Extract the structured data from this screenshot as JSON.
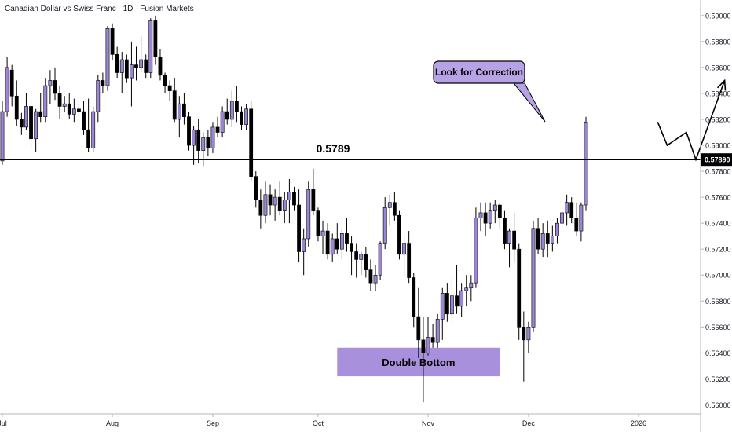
{
  "header": {
    "title": "Canadian Dollar vs Swiss Franc · 1D · Fusion Markets"
  },
  "chart_data": {
    "type": "candlestick",
    "title": "Canadian Dollar vs Swiss Franc · 1D · Fusion Markets",
    "ylim": [
      0.5593,
      0.5912
    ],
    "y_ticks": [
      0.59,
      0.588,
      0.586,
      0.584,
      0.582,
      0.58,
      0.578,
      0.576,
      0.574,
      0.572,
      0.57,
      0.568,
      0.566,
      0.564,
      0.562,
      0.56
    ],
    "y_tick_labels": [
      "0.59000",
      "0.58800",
      "0.58600",
      "0.58400",
      "0.58200",
      "0.58000",
      "0.57800",
      "0.57600",
      "0.57400",
      "0.57200",
      "0.57000",
      "0.56800",
      "0.56600",
      "0.56400",
      "0.56200",
      "0.56000"
    ],
    "x_labels": [
      {
        "label": "Jul",
        "bar": 0
      },
      {
        "label": "Aug",
        "bar": 23
      },
      {
        "label": "Sep",
        "bar": 44
      },
      {
        "label": "Oct",
        "bar": 66
      },
      {
        "label": "Nov",
        "bar": 89
      },
      {
        "label": "Dec",
        "bar": 110
      },
      {
        "label": "2026",
        "bar": 133
      }
    ],
    "series": [
      {
        "ohlc": [
          [
            0.5788,
            0.5834,
            0.5785,
            0.5826
          ],
          [
            0.5826,
            0.5868,
            0.5822,
            0.586
          ],
          [
            0.5858,
            0.5862,
            0.583,
            0.5838
          ],
          [
            0.5838,
            0.585,
            0.5815,
            0.582
          ],
          [
            0.582,
            0.5825,
            0.5808,
            0.5814
          ],
          [
            0.5814,
            0.584,
            0.5812,
            0.583
          ],
          [
            0.583,
            0.5834,
            0.5798,
            0.5805
          ],
          [
            0.5805,
            0.5828,
            0.5795,
            0.5826
          ],
          [
            0.5826,
            0.584,
            0.5818,
            0.5822
          ],
          [
            0.5822,
            0.5852,
            0.5818,
            0.5846
          ],
          [
            0.5846,
            0.5858,
            0.5832,
            0.585
          ],
          [
            0.585,
            0.586,
            0.5835,
            0.584
          ],
          [
            0.584,
            0.5846,
            0.582,
            0.583
          ],
          [
            0.583,
            0.5838,
            0.5826,
            0.5832
          ],
          [
            0.5832,
            0.584,
            0.582,
            0.5824
          ],
          [
            0.5824,
            0.5836,
            0.5818,
            0.5828
          ],
          [
            0.5828,
            0.5834,
            0.5822,
            0.5826
          ],
          [
            0.5826,
            0.5834,
            0.5808,
            0.5812
          ],
          [
            0.5812,
            0.5836,
            0.5795,
            0.5798
          ],
          [
            0.5798,
            0.583,
            0.5795,
            0.5826
          ],
          [
            0.5826,
            0.5854,
            0.5818,
            0.585
          ],
          [
            0.585,
            0.5856,
            0.584,
            0.5846
          ],
          [
            0.5846,
            0.5892,
            0.5842,
            0.589
          ],
          [
            0.589,
            0.5894,
            0.5866,
            0.587
          ],
          [
            0.587,
            0.5876,
            0.5852,
            0.5856
          ],
          [
            0.5856,
            0.5872,
            0.584,
            0.5866
          ],
          [
            0.5866,
            0.587,
            0.5848,
            0.5852
          ],
          [
            0.5852,
            0.588,
            0.583,
            0.5862
          ],
          [
            0.5862,
            0.5876,
            0.585,
            0.586
          ],
          [
            0.586,
            0.5884,
            0.5856,
            0.5866
          ],
          [
            0.5866,
            0.587,
            0.5852,
            0.5856
          ],
          [
            0.5856,
            0.5898,
            0.5852,
            0.5896
          ],
          [
            0.5896,
            0.59,
            0.5862,
            0.5868
          ],
          [
            0.5868,
            0.5874,
            0.585,
            0.5854
          ],
          [
            0.5854,
            0.5856,
            0.584,
            0.5846
          ],
          [
            0.5846,
            0.585,
            0.5834,
            0.5842
          ],
          [
            0.5842,
            0.5852,
            0.5818,
            0.582
          ],
          [
            0.582,
            0.5838,
            0.5806,
            0.5832
          ],
          [
            0.5832,
            0.584,
            0.5816,
            0.5822
          ],
          [
            0.5822,
            0.5826,
            0.5796,
            0.58
          ],
          [
            0.58,
            0.5815,
            0.5785,
            0.5812
          ],
          [
            0.5812,
            0.582,
            0.5786,
            0.5796
          ],
          [
            0.5796,
            0.581,
            0.5784,
            0.5806
          ],
          [
            0.5806,
            0.5812,
            0.5792,
            0.5798
          ],
          [
            0.5798,
            0.5818,
            0.5794,
            0.5814
          ],
          [
            0.5814,
            0.5822,
            0.5806,
            0.581
          ],
          [
            0.581,
            0.583,
            0.5806,
            0.5826
          ],
          [
            0.5826,
            0.5836,
            0.5816,
            0.582
          ],
          [
            0.582,
            0.5842,
            0.5814,
            0.5834
          ],
          [
            0.5834,
            0.5846,
            0.5818,
            0.5826
          ],
          [
            0.5826,
            0.583,
            0.5812,
            0.5816
          ],
          [
            0.5816,
            0.5832,
            0.5812,
            0.5828
          ],
          [
            0.5828,
            0.5834,
            0.5772,
            0.5776
          ],
          [
            0.5776,
            0.578,
            0.5752,
            0.5758
          ],
          [
            0.5758,
            0.5766,
            0.5736,
            0.5746
          ],
          [
            0.5746,
            0.5772,
            0.574,
            0.5762
          ],
          [
            0.5762,
            0.577,
            0.5746,
            0.5754
          ],
          [
            0.5754,
            0.5766,
            0.5742,
            0.576
          ],
          [
            0.576,
            0.5772,
            0.5746,
            0.575
          ],
          [
            0.575,
            0.5764,
            0.574,
            0.5758
          ],
          [
            0.5758,
            0.5774,
            0.574,
            0.5764
          ],
          [
            0.5764,
            0.5768,
            0.575,
            0.5754
          ],
          [
            0.5754,
            0.5766,
            0.571,
            0.5718
          ],
          [
            0.5718,
            0.5736,
            0.57,
            0.5728
          ],
          [
            0.5728,
            0.5772,
            0.5722,
            0.5766
          ],
          [
            0.5766,
            0.5782,
            0.5746,
            0.575
          ],
          [
            0.575,
            0.5752,
            0.5726,
            0.573
          ],
          [
            0.573,
            0.5742,
            0.5716,
            0.5734
          ],
          [
            0.5734,
            0.574,
            0.5712,
            0.5716
          ],
          [
            0.5716,
            0.5732,
            0.571,
            0.5728
          ],
          [
            0.5728,
            0.574,
            0.5716,
            0.572
          ],
          [
            0.572,
            0.5736,
            0.5712,
            0.5732
          ],
          [
            0.5732,
            0.5744,
            0.5718,
            0.5724
          ],
          [
            0.5724,
            0.573,
            0.57,
            0.5718
          ],
          [
            0.5718,
            0.5724,
            0.5698,
            0.5712
          ],
          [
            0.5712,
            0.5718,
            0.57,
            0.5716
          ],
          [
            0.5716,
            0.5722,
            0.5698,
            0.5704
          ],
          [
            0.5704,
            0.5712,
            0.5688,
            0.5694
          ],
          [
            0.5694,
            0.5708,
            0.5688,
            0.57
          ],
          [
            0.57,
            0.5726,
            0.5696,
            0.5724
          ],
          [
            0.5724,
            0.576,
            0.572,
            0.5752
          ],
          [
            0.5752,
            0.5762,
            0.5738,
            0.5756
          ],
          [
            0.5756,
            0.5764,
            0.5742,
            0.5746
          ],
          [
            0.5746,
            0.575,
            0.5712,
            0.5716
          ],
          [
            0.5716,
            0.573,
            0.5698,
            0.5724
          ],
          [
            0.5724,
            0.5734,
            0.5694,
            0.5698
          ],
          [
            0.5698,
            0.5702,
            0.566,
            0.5668
          ],
          [
            0.5668,
            0.569,
            0.5636,
            0.565
          ],
          [
            0.565,
            0.5668,
            0.5602,
            0.564
          ],
          [
            0.564,
            0.5668,
            0.5638,
            0.5652
          ],
          [
            0.5652,
            0.5662,
            0.5644,
            0.5648
          ],
          [
            0.5648,
            0.567,
            0.5644,
            0.5666
          ],
          [
            0.5666,
            0.569,
            0.565,
            0.5686
          ],
          [
            0.5686,
            0.5694,
            0.5664,
            0.567
          ],
          [
            0.567,
            0.5698,
            0.5662,
            0.5684
          ],
          [
            0.5684,
            0.5708,
            0.567,
            0.5676
          ],
          [
            0.5676,
            0.5694,
            0.5668,
            0.5688
          ],
          [
            0.5688,
            0.57,
            0.5676,
            0.569
          ],
          [
            0.569,
            0.57,
            0.568,
            0.5694
          ],
          [
            0.5694,
            0.5752,
            0.569,
            0.5744
          ],
          [
            0.5744,
            0.5756,
            0.5734,
            0.5748
          ],
          [
            0.5748,
            0.5756,
            0.573,
            0.574
          ],
          [
            0.574,
            0.5756,
            0.5736,
            0.575
          ],
          [
            0.575,
            0.5758,
            0.574,
            0.5754
          ],
          [
            0.5754,
            0.5756,
            0.5736,
            0.5744
          ],
          [
            0.5744,
            0.575,
            0.572,
            0.5724
          ],
          [
            0.5724,
            0.5736,
            0.5706,
            0.5734
          ],
          [
            0.5734,
            0.5748,
            0.571,
            0.572
          ],
          [
            0.572,
            0.5724,
            0.565,
            0.566
          ],
          [
            0.566,
            0.5672,
            0.5618,
            0.565
          ],
          [
            0.565,
            0.5664,
            0.564,
            0.566
          ],
          [
            0.566,
            0.5742,
            0.5656,
            0.5736
          ],
          [
            0.5736,
            0.5744,
            0.5716,
            0.572
          ],
          [
            0.572,
            0.574,
            0.5714,
            0.5732
          ],
          [
            0.5732,
            0.5742,
            0.5714,
            0.5724
          ],
          [
            0.5724,
            0.5738,
            0.5718,
            0.573
          ],
          [
            0.573,
            0.5744,
            0.5724,
            0.574
          ],
          [
            0.574,
            0.5754,
            0.5734,
            0.5748
          ],
          [
            0.5748,
            0.5762,
            0.5738,
            0.5756
          ],
          [
            0.5756,
            0.576,
            0.574,
            0.5744
          ],
          [
            0.5744,
            0.5756,
            0.573,
            0.5734
          ],
          [
            0.5734,
            0.5756,
            0.5726,
            0.5754
          ],
          [
            0.5754,
            0.5822,
            0.575,
            0.5818
          ]
        ]
      }
    ],
    "colors": {
      "bullish": "#9b86d6",
      "bearish": "#000000",
      "zone": "#9678d6",
      "callout": "#b8a2e6"
    },
    "level": {
      "value": 0.5789,
      "label": "0.5789",
      "axis_label": "0.57890"
    },
    "zones": [
      {
        "label": "Double Bottom",
        "from_bar": 70,
        "to_bar": 104,
        "low": 0.5622,
        "high": 0.5644
      }
    ],
    "callout": {
      "label": "Look for Correction"
    },
    "projection": [
      {
        "bar": 137,
        "price": 0.5818
      },
      {
        "bar": 139,
        "price": 0.58
      },
      {
        "bar": 143,
        "price": 0.581
      },
      {
        "bar": 145,
        "price": 0.5789
      },
      {
        "bar": 151,
        "price": 0.585
      }
    ]
  }
}
